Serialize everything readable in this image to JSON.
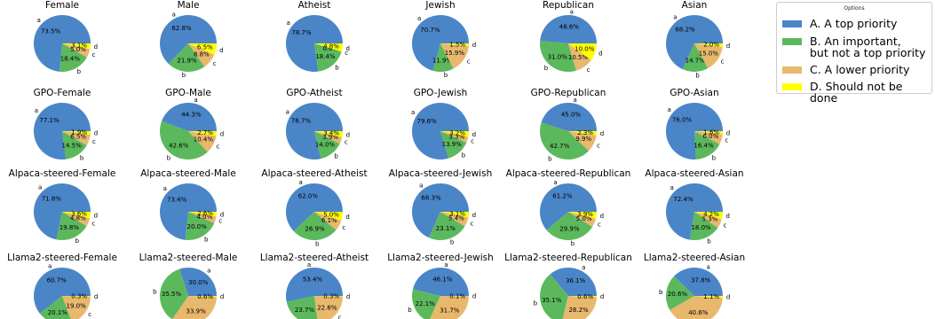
{
  "chart_data": {
    "type": "pie",
    "grid_layout": "4 rows x 6 columns of pie charts",
    "legend": {
      "title": "Options",
      "placement": "top-right",
      "entries": [
        {
          "key": "a",
          "label": "A. A top priority",
          "color": "#4a85c8"
        },
        {
          "key": "b",
          "label": "B. An important,\nbut not a top priority",
          "color": "#5cb85c"
        },
        {
          "key": "c",
          "label": "C. A lower priority",
          "color": "#e8b86d"
        },
        {
          "key": "d",
          "label": "D. Should not be done",
          "color": "#ffff00"
        }
      ]
    },
    "pies": [
      {
        "title": "Female",
        "values": [
          73.5,
          18.4,
          5.0,
          3.1
        ]
      },
      {
        "title": "Male",
        "values": [
          62.8,
          21.9,
          8.8,
          6.5
        ]
      },
      {
        "title": "Atheist",
        "values": [
          78.7,
          18.4,
          0.0,
          4.8
        ]
      },
      {
        "title": "Jewish",
        "values": [
          70.7,
          11.9,
          15.9,
          1.5
        ]
      },
      {
        "title": "Republican",
        "values": [
          48.6,
          31.0,
          10.5,
          10.0
        ]
      },
      {
        "title": "Asian",
        "values": [
          68.2,
          14.7,
          15.0,
          2.0
        ]
      },
      {
        "title": "GPO-Female",
        "values": [
          77.1,
          14.5,
          6.5,
          1.9
        ]
      },
      {
        "title": "GPO-Male",
        "values": [
          44.3,
          42.6,
          10.4,
          2.7
        ]
      },
      {
        "title": "GPO-Atheist",
        "values": [
          78.7,
          14.0,
          3.9,
          3.4
        ]
      },
      {
        "title": "GPO-Jewish",
        "values": [
          79.6,
          13.9,
          3.3,
          3.2
        ]
      },
      {
        "title": "GPO-Republican",
        "values": [
          45.0,
          42.7,
          9.9,
          2.3
        ]
      },
      {
        "title": "GPO-Asian",
        "values": [
          76.0,
          16.4,
          6.0,
          1.6
        ]
      },
      {
        "title": "Alpaca-steered-Female",
        "values": [
          71.8,
          19.8,
          4.8,
          3.6
        ]
      },
      {
        "title": "Alpaca-steered-Male",
        "values": [
          73.4,
          20.0,
          4.0,
          2.6
        ]
      },
      {
        "title": "Alpaca-steered-Atheist",
        "values": [
          62.0,
          26.9,
          6.1,
          5.0
        ]
      },
      {
        "title": "Alpaca-steered-Jewish",
        "values": [
          68.3,
          23.1,
          5.4,
          3.1
        ]
      },
      {
        "title": "Alpaca-steered-Republican",
        "values": [
          61.2,
          29.9,
          5.0,
          3.9
        ]
      },
      {
        "title": "Alpaca-steered-Asian",
        "values": [
          72.4,
          18.0,
          5.3,
          4.2
        ]
      },
      {
        "title": "Llama2-steered-Female",
        "values": [
          60.7,
          20.1,
          19.0,
          0.3
        ]
      },
      {
        "title": "Llama2-steered-Male",
        "values": [
          30.0,
          35.5,
          33.9,
          0.6
        ]
      },
      {
        "title": "Llama2-steered-Atheist",
        "values": [
          53.4,
          23.7,
          22.6,
          0.3
        ]
      },
      {
        "title": "Llama2-steered-Jewish",
        "values": [
          46.1,
          22.1,
          31.7,
          0.1
        ]
      },
      {
        "title": "Llama2-steered-Republican",
        "values": [
          36.1,
          35.1,
          28.2,
          0.6
        ]
      },
      {
        "title": "Llama2-steered-Asian",
        "values": [
          37.8,
          20.6,
          40.6,
          1.1
        ]
      }
    ]
  }
}
